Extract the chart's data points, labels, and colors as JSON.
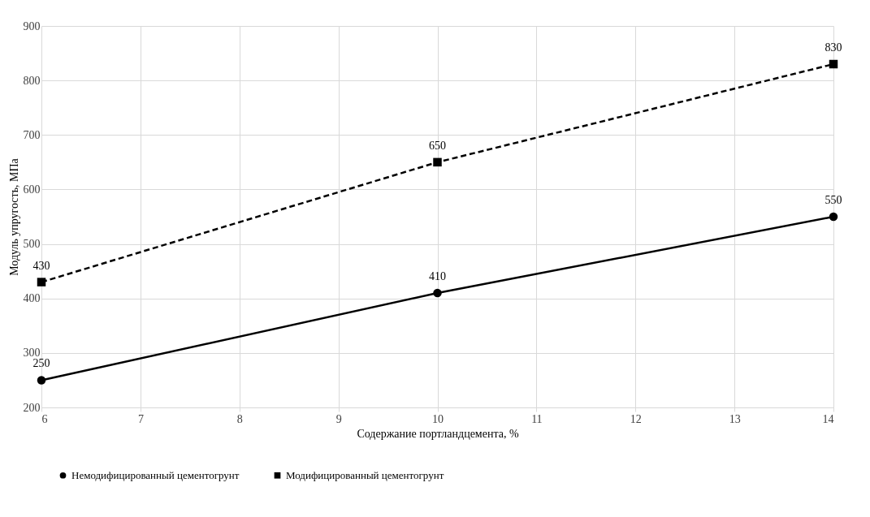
{
  "chart_data": {
    "type": "line",
    "xlabel": "Содержание портландцемента, %",
    "ylabel": "Модуль упругость, МПа",
    "x": [
      6,
      10,
      14
    ],
    "series": [
      {
        "name": "Немодифицированный цементогрунт",
        "color": "#000000",
        "values": [
          250,
          410,
          550
        ],
        "marker": "circle",
        "line_style": "solid"
      },
      {
        "name": "Модифицированный цементогрунт",
        "color": "#000000",
        "values": [
          430,
          650,
          830
        ],
        "marker": "square",
        "line_style": "dashed"
      }
    ],
    "xlim": [
      6,
      14
    ],
    "xticks": [
      6,
      7,
      8,
      9,
      10,
      11,
      12,
      13,
      14
    ],
    "ylim": [
      200,
      900
    ],
    "yticks": [
      200,
      300,
      400,
      500,
      600,
      700,
      800,
      900
    ],
    "grid": true,
    "legend": "bottom",
    "data_labels": true
  }
}
